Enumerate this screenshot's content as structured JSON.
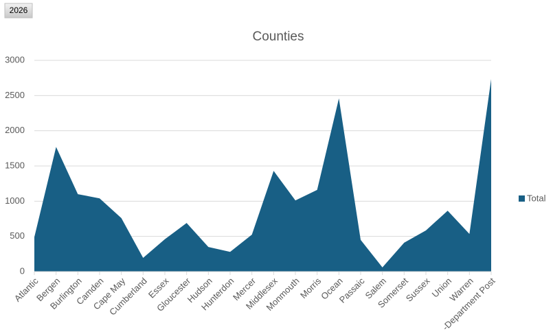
{
  "button": "2026",
  "chart_data": {
    "type": "area",
    "title": "Counties",
    "categories": [
      "Atlantic",
      "Bergen",
      "Burlington",
      "Camden",
      "Cape May",
      "Cumberland",
      "Essex",
      "Gloucester",
      "Hudson",
      "Hunterdon",
      "Mercer",
      "Middlesex",
      "Monmouth",
      "Morris",
      "Ocean",
      "Passaic",
      "Salem",
      "Somerset",
      "Sussex",
      "Union",
      "Warren",
      "-Department Post"
    ],
    "series": [
      {
        "name": "Total",
        "color": "#185f85",
        "values": [
          490,
          1770,
          1100,
          1040,
          760,
          195,
          460,
          690,
          350,
          280,
          525,
          1430,
          1010,
          1160,
          2460,
          450,
          60,
          410,
          585,
          865,
          535,
          2735
        ]
      }
    ],
    "ylim": [
      0,
      3000
    ],
    "yticks": [
      0,
      500,
      1000,
      1500,
      2000,
      2500,
      3000
    ],
    "grid": true,
    "legend": "right"
  }
}
